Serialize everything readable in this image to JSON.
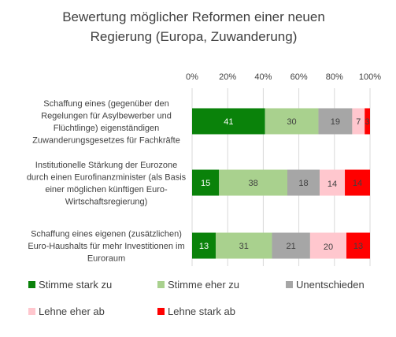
{
  "chart_data": {
    "type": "bar",
    "stacked": "percent",
    "orientation": "horizontal",
    "title": "Bewertung möglicher Reformen einer neuen Regierung (Europa, Zuwanderung)",
    "title_lines": [
      "Bewertung möglicher Reformen einer neuen",
      "Regierung (Europa, Zuwanderung)"
    ],
    "xlim": [
      0,
      100
    ],
    "x_ticks": [
      "0%",
      "20%",
      "40%",
      "60%",
      "80%",
      "100%"
    ],
    "grid": true,
    "legend_position": "bottom",
    "categories": [
      "Schaffung eines (gegenüber den Regelungen für Asylbewerber und Flüchtlinge) eigenständigen Zuwanderungsgesetzes für Fachkräfte",
      "Institutionelle Stärkung der Eurozone durch einen Eurofinanzminister (als Basis einer möglichen künftigen Euro-Wirtschaftsregierung)",
      "Schaffung eines eigenen (zusätzlichen) Euro-Haushalts für mehr Investitionen im Euroraum"
    ],
    "category_lines": [
      [
        "Schaffung eines (gegenüber den",
        "Regelungen für Asylbewerber und",
        "Flüchtlinge) eigenständigen",
        "Zuwanderungsgesetzes für Fachkräfte"
      ],
      [
        "Institutionelle Stärkung der Eurozone",
        "durch einen Eurofinanzminister (als Basis",
        "einer möglichen künftigen Euro-",
        "Wirtschaftsregierung)"
      ],
      [
        "Schaffung eines eigenen (zusätzlichen)",
        "Euro-Haushalts für mehr Investitionen im",
        "Euroraum"
      ]
    ],
    "series": [
      {
        "name": "Stimme stark zu",
        "color": "#0a820a",
        "label_color": "#ffffff",
        "values": [
          41,
          15,
          13
        ]
      },
      {
        "name": "Stimme eher zu",
        "color": "#a9d18e",
        "label_color": "#404040",
        "values": [
          30,
          38,
          31
        ]
      },
      {
        "name": "Unentschieden",
        "color": "#a6a6a6",
        "label_color": "#404040",
        "values": [
          19,
          18,
          21
        ]
      },
      {
        "name": "Lehne eher ab",
        "color": "#ffc7ce",
        "label_color": "#404040",
        "values": [
          7,
          14,
          20
        ]
      },
      {
        "name": "Lehne stark ab",
        "color": "#ff0000",
        "label_color": "#404040",
        "values": [
          3,
          14,
          13
        ]
      }
    ]
  }
}
